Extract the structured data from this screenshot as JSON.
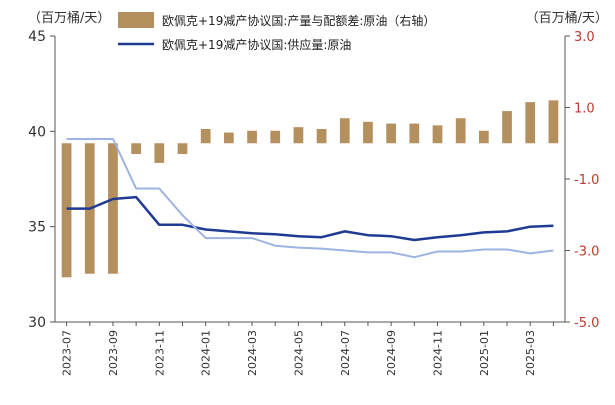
{
  "chart_data": {
    "type": "bar+line",
    "left_unit": "（百万桶/天）",
    "right_unit": "（百万桶/天）",
    "left_ylim": [
      30,
      45
    ],
    "left_ticks": [
      "30",
      "35",
      "40",
      "45"
    ],
    "right_ylim": [
      -5.0,
      3.0
    ],
    "right_ticks": [
      "-5.0",
      "-3.0",
      "-1.0",
      "1.0",
      "3.0"
    ],
    "months": [
      "2023-07",
      "2023-08",
      "2023-09",
      "2023-10",
      "2023-11",
      "2023-12",
      "2024-01",
      "2024-02",
      "2024-03",
      "2024-04",
      "2024-05",
      "2024-06",
      "2024-07",
      "2024-08",
      "2024-09",
      "2024-10",
      "2024-11",
      "2024-12",
      "2025-01",
      "2025-02",
      "2025-03",
      "2025-04"
    ],
    "x_tick_labels": [
      "2023-07",
      "2023-09",
      "2023-11",
      "2024-01",
      "2024-03",
      "2024-05",
      "2024-07",
      "2024-09",
      "2024-11",
      "2025-01",
      "2025-03"
    ],
    "series": [
      {
        "name": "欧佩克+19减产协议国:产量与配额差:原油（右轴）",
        "kind": "bar",
        "axis": "right",
        "color": "#b5905f",
        "values": [
          -3.75,
          -3.65,
          -3.65,
          -0.3,
          -0.55,
          -0.3,
          0.4,
          0.3,
          0.35,
          0.35,
          0.45,
          0.4,
          0.7,
          0.6,
          0.55,
          0.55,
          0.5,
          0.7,
          0.35,
          0.9,
          1.15,
          1.2
        ]
      },
      {
        "name": "欧佩克+19减产协议国:供应量:原油",
        "kind": "line",
        "axis": "left",
        "color": "#1f3a93",
        "values": [
          35.95,
          35.95,
          36.45,
          36.55,
          35.1,
          35.1,
          34.85,
          34.75,
          34.65,
          34.6,
          34.5,
          34.45,
          34.75,
          34.55,
          34.5,
          34.3,
          34.45,
          34.55,
          34.7,
          34.75,
          35.0,
          35.05
        ]
      },
      {
        "name": "",
        "kind": "line",
        "axis": "left",
        "color": "#9db4e0",
        "values": [
          39.6,
          39.6,
          39.6,
          37.0,
          37.0,
          35.6,
          34.4,
          34.4,
          34.4,
          34.0,
          33.9,
          33.85,
          33.75,
          33.65,
          33.65,
          33.4,
          33.7,
          33.7,
          33.8,
          33.8,
          33.6,
          33.75
        ]
      }
    ],
    "legend": {
      "bar_label": "欧佩克+19减产协议国:产量与配额差:原油（右轴）",
      "line_label": "欧佩克+19减产协议国:供应量:原油",
      "placement": "top"
    }
  }
}
